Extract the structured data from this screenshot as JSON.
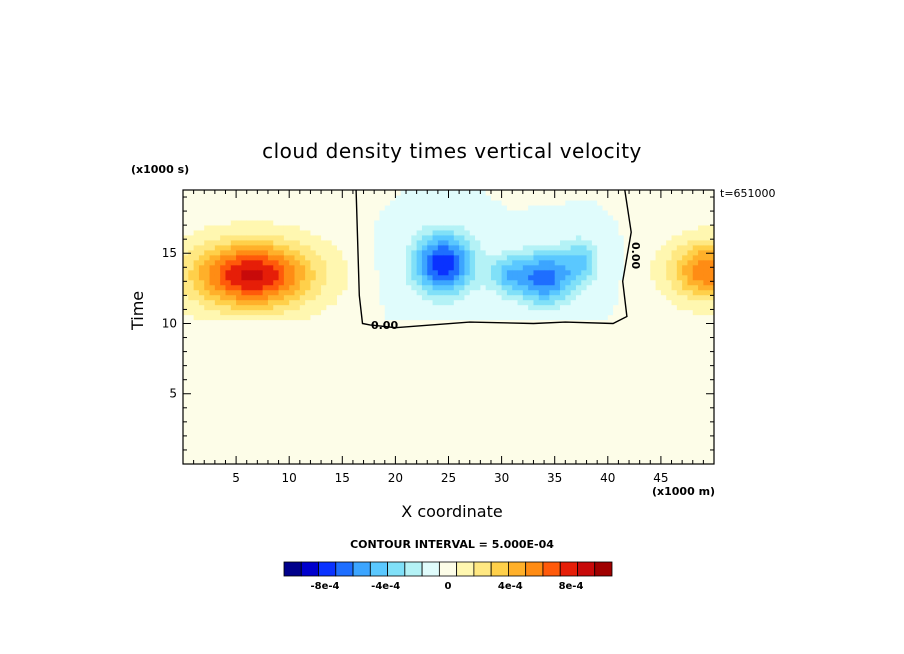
{
  "chart_data": {
    "type": "heatmap",
    "title": "cloud density times vertical velocity",
    "xlabel": "X coordinate",
    "ylabel": "Time",
    "x_units": "(x1000 m)",
    "y_units": "(x1000 s)",
    "timestamp": "t=651000",
    "contour_interval_label": "CONTOUR INTERVAL = 5.000E-04",
    "xlim": [
      0,
      50
    ],
    "ylim": [
      0,
      19.5
    ],
    "x_ticks": [
      5,
      10,
      15,
      20,
      25,
      30,
      35,
      40,
      45
    ],
    "y_ticks": [
      5,
      10,
      15
    ],
    "x_tick_labels": [
      "5",
      "10",
      "15",
      "20",
      "25",
      "30",
      "35",
      "40",
      "45"
    ],
    "y_tick_labels": [
      "5",
      "10",
      "15"
    ],
    "colorbar_labels": [
      "-8e-4",
      "-4e-4",
      "0",
      "4e-4",
      "8e-4"
    ],
    "contour_labels": [
      "0.00",
      "0.00"
    ],
    "background_value": 0,
    "features": [
      {
        "kind": "positive",
        "x": 6.5,
        "y": 13.5,
        "sx": 5.5,
        "sy": 2.3,
        "amp": 0.00078
      },
      {
        "kind": "positive",
        "x": 49.5,
        "y": 13.8,
        "sx": 3.5,
        "sy": 2.0,
        "amp": 0.00055
      },
      {
        "kind": "negative",
        "x": 24.5,
        "y": 14.3,
        "sx": 3.0,
        "sy": 2.3,
        "amp": -0.00072
      },
      {
        "kind": "negative",
        "x": 34.0,
        "y": 13.3,
        "sx": 2.8,
        "sy": 2.0,
        "amp": -0.0006
      },
      {
        "kind": "negative",
        "x": 30.5,
        "y": 13.5,
        "sx": 1.8,
        "sy": 1.5,
        "amp": -0.0003
      },
      {
        "kind": "negative",
        "x": 37.5,
        "y": 14.5,
        "sx": 1.8,
        "sy": 1.8,
        "amp": -0.0003
      }
    ],
    "colorscale": [
      "#00008b",
      "#0000cd",
      "#0a32ff",
      "#1e6eff",
      "#3ca5ff",
      "#5ac8ff",
      "#80e0f8",
      "#b4f2f6",
      "#e0fcfc",
      "#fdfde8",
      "#fff7b0",
      "#ffe882",
      "#ffd04a",
      "#ffb02a",
      "#ff8c14",
      "#ff5a0a",
      "#e61e08",
      "#c80a0a",
      "#a00000"
    ]
  }
}
